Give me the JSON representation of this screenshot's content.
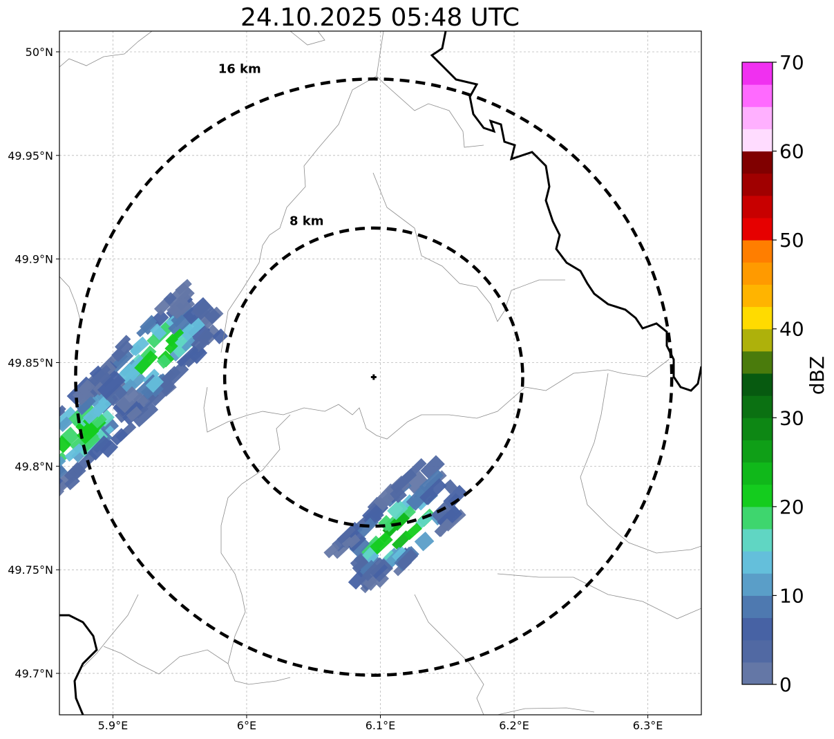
{
  "title": "24.10.2025 05:48 UTC",
  "map": {
    "lon_range": [
      5.86,
      6.34
    ],
    "lat_range": [
      49.68,
      50.01
    ],
    "lon_ticks": [
      {
        "value": 5.9,
        "label": "5.9°E"
      },
      {
        "value": 6.0,
        "label": "6°E"
      },
      {
        "value": 6.1,
        "label": "6.1°E"
      },
      {
        "value": 6.2,
        "label": "6.2°E"
      },
      {
        "value": 6.3,
        "label": "6.3°E"
      }
    ],
    "lat_ticks": [
      {
        "value": 50.0,
        "label": "50°N"
      },
      {
        "value": 49.95,
        "label": "49.95°N"
      },
      {
        "value": 49.9,
        "label": "49.9°N"
      },
      {
        "value": 49.85,
        "label": "49.85°N"
      },
      {
        "value": 49.8,
        "label": "49.8°N"
      },
      {
        "value": 49.75,
        "label": "49.75°N"
      },
      {
        "value": 49.7,
        "label": "49.7°N"
      }
    ],
    "gridlines": true,
    "radar_site": {
      "lon": 6.095,
      "lat": 49.843
    },
    "rings": [
      {
        "label": "8 km",
        "radius_km": 8
      },
      {
        "label": "16 km",
        "radius_km": 16
      }
    ],
    "echo_clusters": [
      {
        "name": "west-north cell",
        "center": [
          5.935,
          49.855
        ],
        "level_dbz": 22
      },
      {
        "name": "west-edge cell",
        "center": [
          5.875,
          49.815
        ],
        "level_dbz": 22
      },
      {
        "name": "south cell",
        "center": [
          6.115,
          49.77
        ],
        "level_dbz": 25
      }
    ]
  },
  "colorbar": {
    "label": "dBZ",
    "min": 0,
    "max": 70,
    "step": 2.5,
    "ticks": [
      "0",
      "10",
      "20",
      "30",
      "40",
      "50",
      "60",
      "70"
    ],
    "colors": [
      "#6477a6",
      "#5169a3",
      "#4762a4",
      "#4e79b0",
      "#5a9ec8",
      "#64bfdb",
      "#60d6c3",
      "#3ed66e",
      "#14cc1e",
      "#10b81a",
      "#0f9f17",
      "#0d8714",
      "#0b7112",
      "#075a10",
      "#4a7b0c",
      "#aeb10b",
      "#ffdb00",
      "#ffb400",
      "#ff9a00",
      "#ff7e00",
      "#e60000",
      "#c80000",
      "#a00000",
      "#800000",
      "#ffdcff",
      "#ffb0ff",
      "#ff6aff",
      "#f030f0"
    ]
  }
}
